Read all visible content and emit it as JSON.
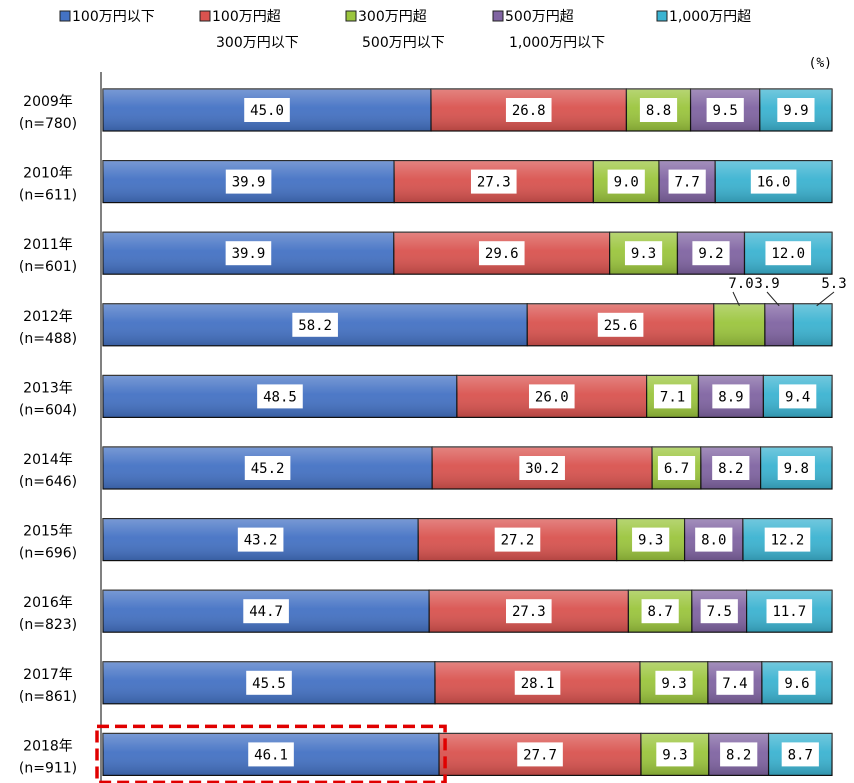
{
  "chart_data": {
    "type": "bar",
    "orientation": "horizontal",
    "stacked": true,
    "percent_stacked": true,
    "unit_label": "(%)",
    "legend_position": "top",
    "categories": [
      {
        "year": "2009年",
        "n": "(n=780)"
      },
      {
        "year": "2010年",
        "n": "(n=611)"
      },
      {
        "year": "2011年",
        "n": "(n=601)"
      },
      {
        "year": "2012年",
        "n": "(n=488)"
      },
      {
        "year": "2013年",
        "n": "(n=604)"
      },
      {
        "year": "2014年",
        "n": "(n=646)"
      },
      {
        "year": "2015年",
        "n": "(n=696)"
      },
      {
        "year": "2016年",
        "n": "(n=823)"
      },
      {
        "year": "2017年",
        "n": "(n=861)"
      },
      {
        "year": "2018年",
        "n": "(n=911)"
      }
    ],
    "series": [
      {
        "name": "100万円以下",
        "name_line2": "",
        "color": "#4472c4",
        "values": [
          45.0,
          39.9,
          39.9,
          58.2,
          48.5,
          45.2,
          43.2,
          44.7,
          45.5,
          46.1
        ]
      },
      {
        "name": "100万円超",
        "name_line2": "300万円以下",
        "color": "#d9534f",
        "values": [
          26.8,
          27.3,
          29.6,
          25.6,
          26.0,
          30.2,
          27.2,
          27.3,
          28.1,
          27.7
        ]
      },
      {
        "name": "300万円超",
        "name_line2": "500万円以下",
        "color": "#9bc53d",
        "values": [
          8.8,
          9.0,
          9.3,
          7.0,
          7.1,
          6.7,
          9.3,
          8.7,
          9.3,
          9.3
        ]
      },
      {
        "name": "500万円超",
        "name_line2": "1,000万円以下",
        "color": "#8064a2",
        "values": [
          9.5,
          7.7,
          9.2,
          3.9,
          8.9,
          8.2,
          8.0,
          7.5,
          7.4,
          8.2
        ]
      },
      {
        "name": "1,000万円超",
        "name_line2": "",
        "color": "#3bb3d1",
        "values": [
          9.9,
          16.0,
          12.0,
          5.3,
          9.4,
          9.8,
          12.2,
          11.7,
          9.6,
          8.7
        ]
      }
    ],
    "value_labels": [
      [
        "45.0",
        "26.8",
        "8.8",
        "9.5",
        "9.9"
      ],
      [
        "39.9",
        "27.3",
        "9.0",
        "7.7",
        "16.0"
      ],
      [
        "39.9",
        "29.6",
        "9.3",
        "9.2",
        "12.0"
      ],
      [
        "58.2",
        "25.6",
        "7.0",
        "3.9",
        "5.3"
      ],
      [
        "48.5",
        "26.0",
        "7.1",
        "8.9",
        "9.4"
      ],
      [
        "45.2",
        "30.2",
        "6.7",
        "8.2",
        "9.8"
      ],
      [
        "43.2",
        "27.2",
        "9.3",
        "8.0",
        "12.2"
      ],
      [
        "44.7",
        "27.3",
        "8.7",
        "7.5",
        "11.7"
      ],
      [
        "45.5",
        "28.1",
        "9.3",
        "7.4",
        "9.6"
      ],
      [
        "46.1",
        "27.7",
        "9.3",
        "8.2",
        "8.7"
      ]
    ],
    "highlight": {
      "category": "2018年",
      "series": "100万円以下",
      "color": "#e00000"
    }
  }
}
